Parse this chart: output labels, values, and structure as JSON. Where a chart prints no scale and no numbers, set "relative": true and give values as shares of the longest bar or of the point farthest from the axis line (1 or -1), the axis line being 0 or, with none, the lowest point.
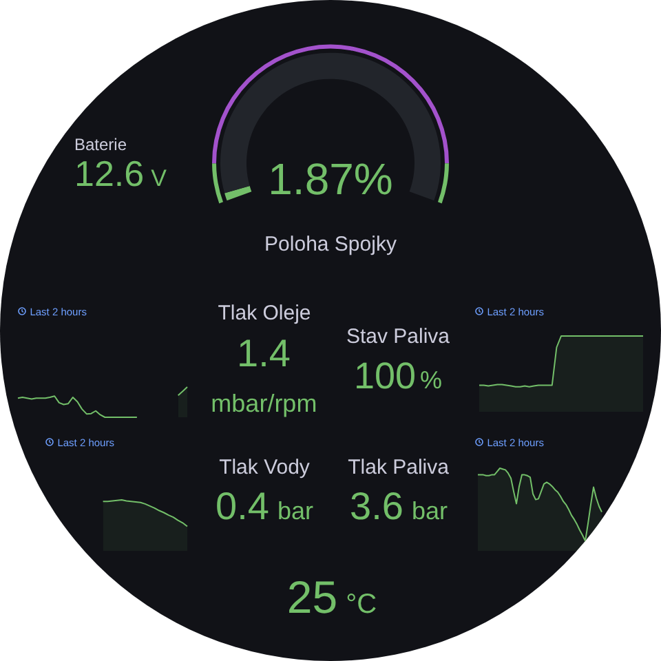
{
  "chart_data": [
    {
      "type": "other",
      "title": "Baterie",
      "annotations": [
        "12.6",
        "V"
      ]
    },
    {
      "type": "donut",
      "title": "Poloha Spojky",
      "categories": [
        null,
        null
      ],
      "values": [
        1.87,
        98.13
      ],
      "colors": [
        "#73bf69",
        "#22252b"
      ],
      "annotations": [
        "1.87%"
      ]
    },
    {
      "type": "donut",
      "categories": [
        null,
        null,
        null
      ],
      "values": [
        9,
        82,
        9
      ],
      "colors": [
        "#73bf69",
        "#a352cc",
        "#73bf69"
      ]
    },
    {
      "type": "line",
      "subtitle": "Last 2 hours",
      "relative": true,
      "categories": [
        null,
        null,
        null,
        null,
        null,
        null,
        null,
        null,
        null,
        null,
        null,
        null,
        null,
        null,
        null,
        null,
        null,
        null,
        null,
        null,
        null,
        null,
        null,
        null,
        null,
        null,
        null,
        null,
        null,
        null,
        null,
        null,
        null,
        null,
        null,
        null,
        null,
        null
      ],
      "series": [
        {
          "color": "#73bf69",
          "values": [
            0.63,
            0.66,
            0.63,
            0.6,
            0.63,
            0.63,
            0.63,
            0.66,
            0.7,
            0.48,
            0.42,
            0.45,
            0.66,
            0.51,
            0.27,
            0.11,
            0.12,
            0.21,
            0.08,
            0,
            0,
            0,
            0,
            0,
            0,
            0,
            0,
            null,
            null,
            null,
            null,
            null,
            null,
            null,
            null,
            null,
            null,
            null
          ]
        },
        {
          "type": "area",
          "color": "#73bf69",
          "values": [
            null,
            null,
            null,
            null,
            null,
            null,
            null,
            null,
            null,
            null,
            null,
            null,
            null,
            null,
            null,
            null,
            null,
            null,
            null,
            null,
            null,
            null,
            null,
            null,
            null,
            null,
            null,
            null,
            null,
            null,
            null,
            null,
            null,
            null,
            null,
            0.72,
            0.86,
            1
          ]
        }
      ]
    },
    {
      "type": "other",
      "title": "Tlak Oleje",
      "annotations": [
        "1.4",
        "mbar/rpm"
      ]
    },
    {
      "type": "other",
      "title": "Stav Paliva",
      "annotations": [
        "100",
        "%"
      ]
    },
    {
      "type": "area",
      "subtitle": "Last 2 hours",
      "relative": true,
      "color": "#73bf69",
      "categories": [
        null,
        null,
        null,
        null,
        null,
        null,
        null,
        null,
        null,
        null,
        null,
        null,
        null,
        null,
        null,
        null,
        null,
        null,
        null,
        null,
        null,
        null,
        null,
        null,
        null,
        null,
        null,
        null,
        null,
        null,
        null,
        null,
        null,
        null,
        null,
        null,
        null
      ],
      "values": [
        0.35,
        0.35,
        0.34,
        0.35,
        0.36,
        0.36,
        0.35,
        0.34,
        0.33,
        0.33,
        0.34,
        0.33,
        0.34,
        0.35,
        0.35,
        0.35,
        0.35,
        0.85,
        1,
        1,
        1,
        1,
        1,
        1,
        1,
        1,
        1,
        1,
        1,
        1,
        1,
        1,
        1,
        1,
        1,
        1,
        1
      ]
    },
    {
      "type": "area",
      "subtitle": "Last 2 hours",
      "relative": true,
      "color": "#73bf69",
      "categories": [
        null,
        null,
        null,
        null,
        null,
        null,
        null,
        null,
        null,
        null,
        null,
        null,
        null,
        null,
        null,
        null,
        null,
        null,
        null,
        null,
        null,
        null,
        null,
        null,
        null,
        null,
        null,
        null,
        null,
        null,
        null
      ],
      "values": [
        null,
        null,
        null,
        null,
        null,
        null,
        null,
        null,
        null,
        null,
        null,
        null,
        0.97,
        0.97,
        0.98,
        0.99,
        1,
        0.98,
        0.97,
        0.96,
        0.95,
        0.92,
        0.88,
        0.84,
        0.79,
        0.75,
        0.7,
        0.66,
        0.6,
        0.55,
        0.48
      ]
    },
    {
      "type": "other",
      "title": "Tlak Vody",
      "annotations": [
        "0.4",
        "bar"
      ]
    },
    {
      "type": "other",
      "title": "Tlak Paliva",
      "annotations": [
        "3.6",
        "bar"
      ]
    },
    {
      "type": "area",
      "subtitle": "Last 2 hours",
      "relative": true,
      "color": "#73bf69",
      "categories": [
        null,
        null,
        null,
        null,
        null,
        null,
        null,
        null,
        null,
        null,
        null,
        null,
        null,
        null,
        null,
        null,
        null,
        null,
        null,
        null,
        null,
        null,
        null,
        null,
        null,
        null,
        null,
        null,
        null,
        null,
        null,
        null,
        null,
        null,
        null,
        null,
        null,
        null,
        null,
        null,
        null,
        null,
        null,
        null,
        null,
        null,
        null,
        null,
        null,
        null,
        null,
        null,
        null,
        null,
        null,
        null,
        null,
        null,
        null,
        null,
        null
      ],
      "values": [
        0.92,
        0.92,
        0.92,
        0.91,
        0.91,
        0.92,
        0.92,
        0.96,
        1,
        0.99,
        0.98,
        0.94,
        0.88,
        0.72,
        0.57,
        0.78,
        0.92,
        0.92,
        0.91,
        0.89,
        0.69,
        0.62,
        0.63,
        0.72,
        0.81,
        0.83,
        0.81,
        0.78,
        0.74,
        0.71,
        0.66,
        0.6,
        0.56,
        0.5,
        0.43,
        0.38,
        0.32,
        0.25,
        0.19,
        0.12,
        0.33,
        0.56,
        0.77,
        0.64,
        0.54,
        0.47,
        null,
        null,
        null,
        null,
        null,
        null,
        null,
        null,
        null,
        null,
        null,
        null,
        null,
        null,
        null
      ]
    },
    {
      "type": "other",
      "annotations": [
        "25",
        "°C"
      ]
    }
  ]
}
